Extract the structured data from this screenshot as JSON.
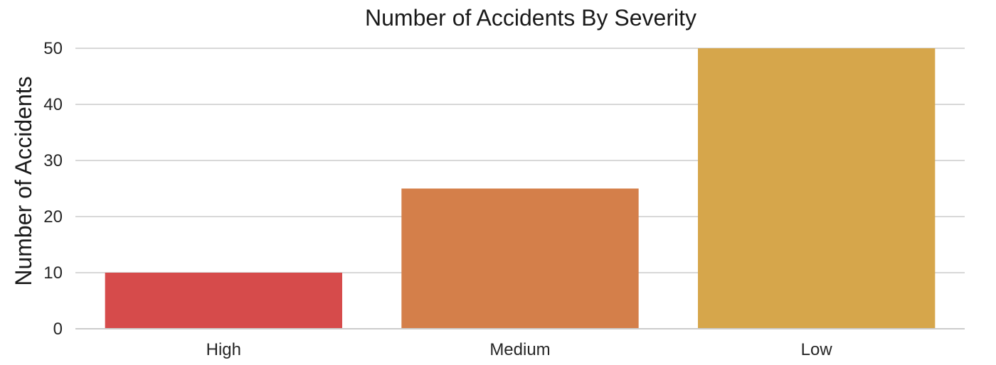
{
  "chart_data": {
    "type": "bar",
    "title": "Number of Accidents By Severity",
    "xlabel": "",
    "ylabel": "Number of Accidents",
    "categories": [
      "High",
      "Medium",
      "Low"
    ],
    "values": [
      10,
      25,
      50
    ],
    "colors": [
      "#d64b4b",
      "#d47f4a",
      "#d6a64b"
    ],
    "ylim": [
      0,
      50
    ],
    "yticks": [
      0,
      10,
      20,
      30,
      40,
      50
    ],
    "grid": true,
    "legend": "none"
  }
}
